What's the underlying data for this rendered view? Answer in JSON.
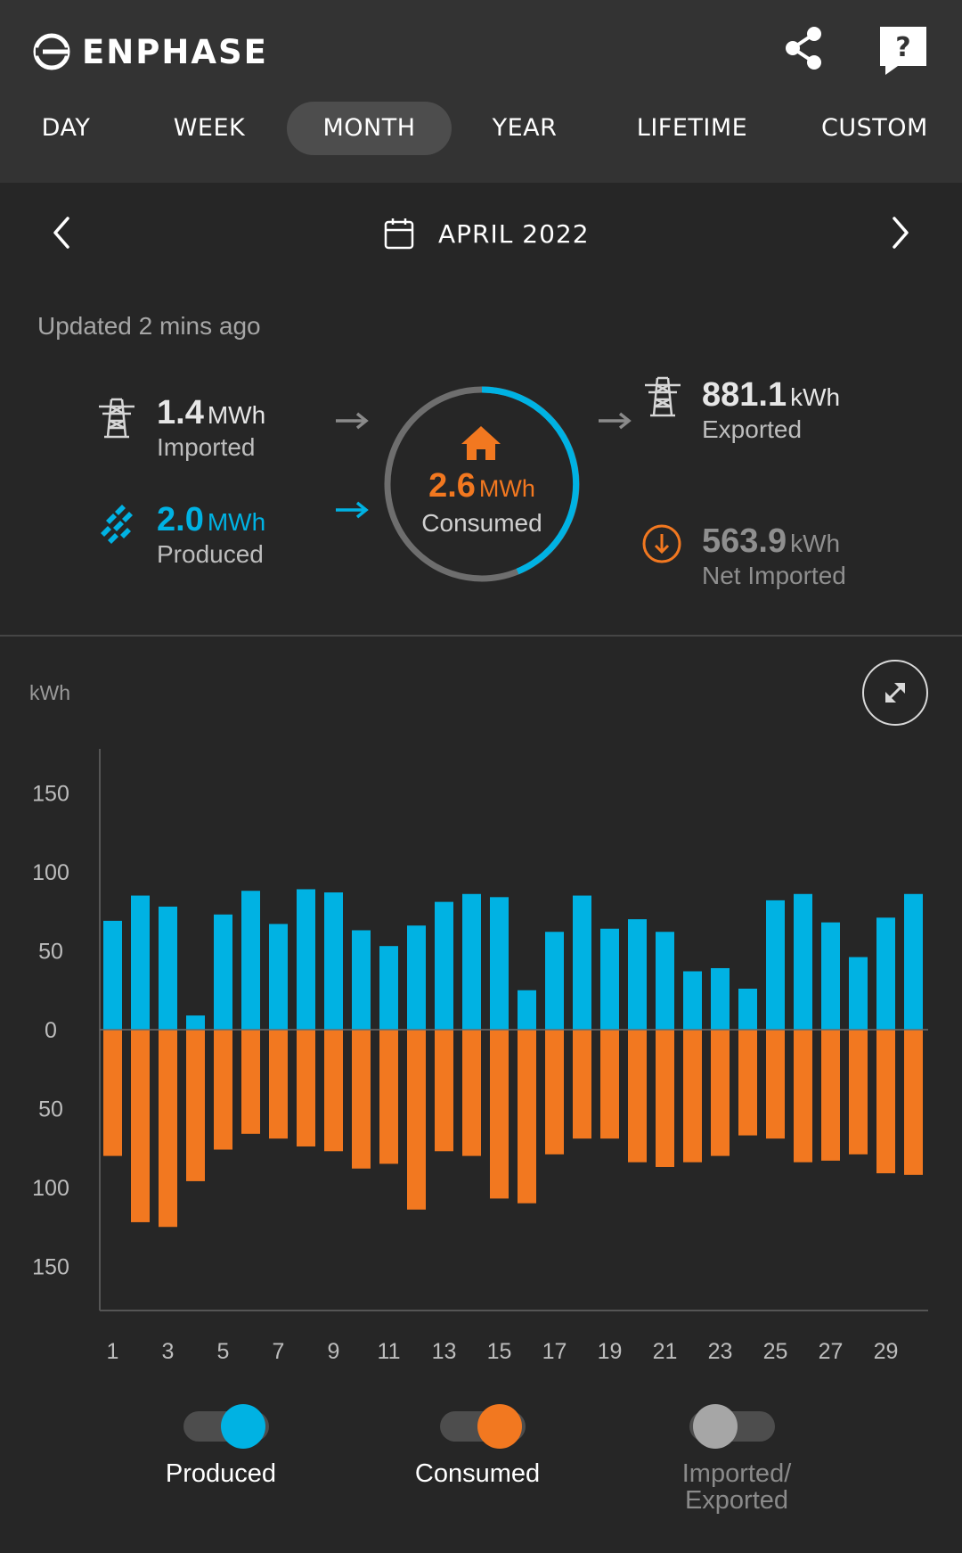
{
  "app": {
    "brand": "ENPHASE"
  },
  "tabs": [
    {
      "label": "DAY",
      "active": false
    },
    {
      "label": "WEEK",
      "active": false
    },
    {
      "label": "MONTH",
      "active": true
    },
    {
      "label": "YEAR",
      "active": false
    },
    {
      "label": "LIFETIME",
      "active": false
    },
    {
      "label": "CUSTOM",
      "active": false
    }
  ],
  "period": {
    "label": "APRIL 2022"
  },
  "status": {
    "updated": "Updated 2 mins ago"
  },
  "summary": {
    "imported": {
      "value": "1.4",
      "unit": "MWh",
      "label": "Imported"
    },
    "produced": {
      "value": "2.0",
      "unit": "MWh",
      "label": "Produced"
    },
    "consumed": {
      "value": "2.6",
      "unit": "MWh",
      "label": "Consumed"
    },
    "exported": {
      "value": "881.1",
      "unit": "kWh",
      "label": "Exported"
    },
    "net": {
      "value": "563.9",
      "unit": "kWh",
      "label": "Net Imported"
    }
  },
  "colors": {
    "produced": "#00b2e3",
    "consumed": "#f27820",
    "imported_exported": "#a6a6a6",
    "background": "#262626",
    "header": "#333333"
  },
  "icons": {
    "brand": "enphase-logo-icon",
    "share": "share-icon",
    "help": "help-icon",
    "prev": "chevron-left-icon",
    "next": "chevron-right-icon",
    "calendar": "calendar-icon",
    "grid": "power-tower-icon",
    "solar": "solar-panel-icon",
    "home": "house-icon",
    "net": "download-circle-icon",
    "expand": "expand-icon"
  },
  "chart_data": {
    "type": "bar",
    "unit": "kWh",
    "ylim": [
      -150,
      150
    ],
    "y_ticks": [
      {
        "value": 150,
        "label": "150"
      },
      {
        "value": 100,
        "label": "100"
      },
      {
        "value": 50,
        "label": "50"
      },
      {
        "value": 0,
        "label": "0"
      },
      {
        "value": -50,
        "label": "50"
      },
      {
        "value": -100,
        "label": "100"
      },
      {
        "value": -150,
        "label": "150"
      }
    ],
    "x_tick_labels": [
      "1",
      "3",
      "5",
      "7",
      "9",
      "11",
      "13",
      "15",
      "17",
      "19",
      "21",
      "23",
      "25",
      "27",
      "29"
    ],
    "categories": [
      1,
      2,
      3,
      4,
      5,
      6,
      7,
      8,
      9,
      10,
      11,
      12,
      13,
      14,
      15,
      16,
      17,
      18,
      19,
      20,
      21,
      22,
      23,
      24,
      25,
      26,
      27,
      28,
      29,
      30
    ],
    "series": [
      {
        "name": "Produced",
        "values": [
          69,
          85,
          78,
          9,
          73,
          88,
          67,
          89,
          87,
          63,
          53,
          66,
          81,
          86,
          84,
          25,
          62,
          85,
          64,
          70,
          62,
          37,
          39,
          26,
          82,
          86,
          68,
          46,
          71,
          86
        ]
      },
      {
        "name": "Consumed",
        "values": [
          80,
          122,
          125,
          96,
          76,
          66,
          69,
          74,
          77,
          88,
          85,
          114,
          77,
          80,
          107,
          110,
          79,
          69,
          69,
          84,
          87,
          84,
          80,
          67,
          69,
          84,
          83,
          79,
          91,
          92
        ]
      }
    ],
    "grid": false
  },
  "legend": {
    "produced": {
      "label": "Produced",
      "on": true
    },
    "consumed": {
      "label": "Consumed",
      "on": true
    },
    "imported_exported": {
      "label": "Imported/ Exported",
      "line1": "Imported/",
      "line2": "Exported",
      "on": false
    }
  }
}
